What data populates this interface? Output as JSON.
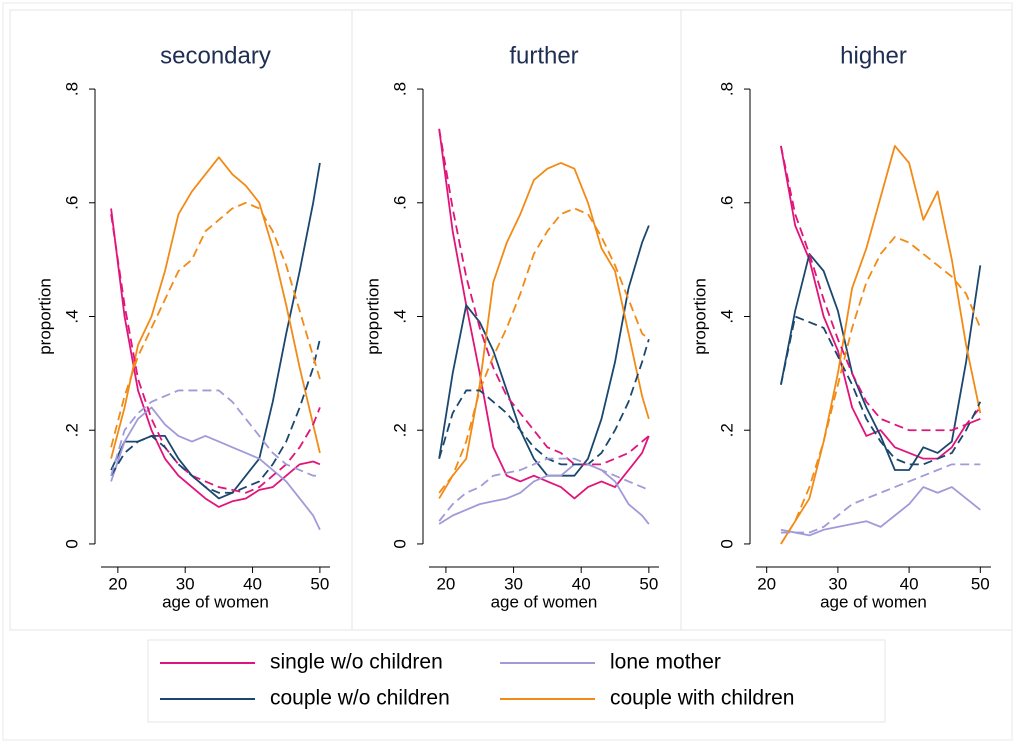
{
  "chart_data": [
    {
      "type": "line",
      "title": "secondary",
      "xlabel": "age of women",
      "ylabel": "proportion",
      "x": [
        19,
        21,
        23,
        25,
        27,
        29,
        31,
        33,
        35,
        37,
        39,
        41,
        43,
        45,
        47,
        49,
        50
      ],
      "xlim": [
        17.5,
        51.5
      ],
      "xticks": [
        20,
        30,
        40,
        50
      ],
      "ylim": [
        -0.03,
        0.83
      ],
      "yticks": [
        0,
        {
          "value": 0.2,
          "label": ".2"
        },
        {
          "value": 0.4,
          "label": ".4"
        },
        {
          "value": 0.6,
          "label": ".6"
        },
        {
          "value": 0.8,
          "label": ".8"
        }
      ],
      "legend": "bottom",
      "series": [
        {
          "name": "single w/o children",
          "color": "#e0147a",
          "values": [
            0.59,
            0.4,
            0.27,
            0.2,
            0.15,
            0.12,
            0.1,
            0.08,
            0.065,
            0.075,
            0.08,
            0.095,
            0.1,
            0.12,
            0.14,
            0.145,
            0.14
          ]
        },
        {
          "name": "couple w/o children",
          "color": "#1a476f",
          "values": [
            0.13,
            0.18,
            0.18,
            0.19,
            0.19,
            0.15,
            0.12,
            0.1,
            0.08,
            0.09,
            0.12,
            0.15,
            0.25,
            0.37,
            0.48,
            0.6,
            0.67
          ]
        },
        {
          "name": "lone mother",
          "color": "#a09ad8",
          "values": [
            0.11,
            0.18,
            0.22,
            0.24,
            0.21,
            0.19,
            0.18,
            0.19,
            0.18,
            0.17,
            0.16,
            0.15,
            0.13,
            0.11,
            0.08,
            0.05,
            0.025
          ]
        },
        {
          "name": "couple with children",
          "color": "#f28a15",
          "values": [
            0.15,
            0.24,
            0.35,
            0.4,
            0.48,
            0.58,
            0.62,
            0.65,
            0.68,
            0.65,
            0.63,
            0.6,
            0.52,
            0.42,
            0.31,
            0.21,
            0.16
          ]
        },
        {
          "color": "#e0147a",
          "linestyle": "dashed",
          "values": [
            0.58,
            0.42,
            0.29,
            0.22,
            0.17,
            0.14,
            0.12,
            0.11,
            0.1,
            0.095,
            0.09,
            0.1,
            0.12,
            0.14,
            0.17,
            0.21,
            0.24
          ]
        },
        {
          "color": "#1a476f",
          "linestyle": "dashed",
          "values": [
            0.12,
            0.16,
            0.18,
            0.19,
            0.17,
            0.14,
            0.12,
            0.1,
            0.09,
            0.09,
            0.1,
            0.11,
            0.14,
            0.18,
            0.24,
            0.31,
            0.36
          ]
        },
        {
          "color": "#a09ad8",
          "linestyle": "dashed",
          "values": [
            0.12,
            0.2,
            0.23,
            0.25,
            0.26,
            0.27,
            0.27,
            0.27,
            0.27,
            0.25,
            0.22,
            0.19,
            0.16,
            0.14,
            0.13,
            0.12,
            0.12
          ]
        },
        {
          "color": "#f28a15",
          "linestyle": "dashed",
          "values": [
            0.17,
            0.26,
            0.33,
            0.38,
            0.43,
            0.48,
            0.5,
            0.55,
            0.57,
            0.59,
            0.6,
            0.59,
            0.55,
            0.49,
            0.41,
            0.33,
            0.29
          ]
        }
      ]
    },
    {
      "type": "line",
      "title": "further",
      "xlabel": "age of women",
      "ylabel": "proportion",
      "x": [
        19,
        21,
        23,
        25,
        27,
        29,
        31,
        33,
        35,
        37,
        39,
        41,
        43,
        45,
        47,
        49,
        50
      ],
      "xlim": [
        17.5,
        51.5
      ],
      "xticks": [
        20,
        30,
        40,
        50
      ],
      "ylim": [
        -0.03,
        0.83
      ],
      "yticks": [
        0,
        {
          "value": 0.2,
          "label": ".2"
        },
        {
          "value": 0.4,
          "label": ".4"
        },
        {
          "value": 0.6,
          "label": ".6"
        },
        {
          "value": 0.8,
          "label": ".8"
        }
      ],
      "series": [
        {
          "color": "#e0147a",
          "values": [
            0.73,
            0.55,
            0.42,
            0.3,
            0.17,
            0.12,
            0.11,
            0.12,
            0.11,
            0.1,
            0.08,
            0.1,
            0.11,
            0.1,
            0.13,
            0.16,
            0.19
          ]
        },
        {
          "color": "#1a476f",
          "values": [
            0.15,
            0.3,
            0.42,
            0.39,
            0.34,
            0.27,
            0.2,
            0.15,
            0.12,
            0.12,
            0.12,
            0.15,
            0.22,
            0.32,
            0.45,
            0.53,
            0.56
          ]
        },
        {
          "color": "#a09ad8",
          "values": [
            0.035,
            0.05,
            0.06,
            0.07,
            0.075,
            0.08,
            0.09,
            0.11,
            0.12,
            0.12,
            0.14,
            0.14,
            0.13,
            0.11,
            0.07,
            0.05,
            0.035
          ]
        },
        {
          "color": "#f28a15",
          "values": [
            0.08,
            0.12,
            0.15,
            0.28,
            0.46,
            0.53,
            0.58,
            0.64,
            0.66,
            0.67,
            0.66,
            0.6,
            0.52,
            0.48,
            0.37,
            0.26,
            0.22
          ]
        },
        {
          "color": "#e0147a",
          "linestyle": "dashed",
          "values": [
            0.73,
            0.59,
            0.47,
            0.38,
            0.31,
            0.26,
            0.23,
            0.2,
            0.17,
            0.16,
            0.14,
            0.14,
            0.14,
            0.15,
            0.16,
            0.18,
            0.19
          ]
        },
        {
          "color": "#1a476f",
          "linestyle": "dashed",
          "values": [
            0.15,
            0.23,
            0.27,
            0.27,
            0.25,
            0.23,
            0.2,
            0.17,
            0.15,
            0.14,
            0.14,
            0.14,
            0.16,
            0.2,
            0.25,
            0.32,
            0.36
          ]
        },
        {
          "color": "#a09ad8",
          "linestyle": "dashed",
          "values": [
            0.04,
            0.07,
            0.09,
            0.1,
            0.12,
            0.125,
            0.13,
            0.14,
            0.15,
            0.15,
            0.15,
            0.14,
            0.13,
            0.12,
            0.11,
            0.1,
            0.095
          ]
        },
        {
          "color": "#f28a15",
          "linestyle": "dashed",
          "values": [
            0.09,
            0.12,
            0.18,
            0.27,
            0.33,
            0.38,
            0.44,
            0.51,
            0.55,
            0.58,
            0.59,
            0.58,
            0.54,
            0.49,
            0.43,
            0.37,
            0.36
          ]
        }
      ]
    },
    {
      "type": "line",
      "title": "higher",
      "xlabel": "age of women",
      "ylabel": "proportion",
      "x": [
        22,
        24,
        26,
        28,
        30,
        32,
        34,
        36,
        38,
        40,
        42,
        44,
        46,
        48,
        50
      ],
      "xlim": [
        18.5,
        51.5
      ],
      "xticks": [
        20,
        30,
        40,
        50
      ],
      "ylim": [
        -0.03,
        0.83
      ],
      "yticks": [
        0,
        {
          "value": 0.2,
          "label": ".2"
        },
        {
          "value": 0.4,
          "label": ".4"
        },
        {
          "value": 0.6,
          "label": ".6"
        },
        {
          "value": 0.8,
          "label": ".8"
        }
      ],
      "series": [
        {
          "color": "#e0147a",
          "values": [
            0.7,
            0.56,
            0.5,
            0.4,
            0.34,
            0.24,
            0.19,
            0.2,
            0.17,
            0.16,
            0.15,
            0.15,
            0.17,
            0.21,
            0.22
          ]
        },
        {
          "color": "#1a476f",
          "values": [
            0.28,
            0.41,
            0.51,
            0.48,
            0.41,
            0.3,
            0.24,
            0.19,
            0.13,
            0.13,
            0.17,
            0.16,
            0.18,
            0.32,
            0.49
          ]
        },
        {
          "color": "#a09ad8",
          "values": [
            0.025,
            0.02,
            0.015,
            0.025,
            0.03,
            0.035,
            0.04,
            0.03,
            0.05,
            0.07,
            0.1,
            0.09,
            0.1,
            0.08,
            0.06
          ]
        },
        {
          "color": "#f28a15",
          "values": [
            0.0,
            0.04,
            0.08,
            0.18,
            0.3,
            0.45,
            0.52,
            0.61,
            0.7,
            0.67,
            0.57,
            0.62,
            0.5,
            0.35,
            0.23
          ]
        },
        {
          "color": "#e0147a",
          "linestyle": "dashed",
          "values": [
            0.7,
            0.58,
            0.51,
            0.43,
            0.36,
            0.3,
            0.25,
            0.22,
            0.21,
            0.2,
            0.2,
            0.2,
            0.2,
            0.21,
            0.24
          ]
        },
        {
          "color": "#1a476f",
          "linestyle": "dashed",
          "values": [
            0.28,
            0.4,
            0.39,
            0.38,
            0.33,
            0.28,
            0.22,
            0.18,
            0.15,
            0.14,
            0.14,
            0.15,
            0.16,
            0.2,
            0.25
          ]
        },
        {
          "color": "#a09ad8",
          "linestyle": "dashed",
          "values": [
            0.02,
            0.02,
            0.02,
            0.03,
            0.05,
            0.07,
            0.08,
            0.09,
            0.1,
            0.11,
            0.12,
            0.13,
            0.14,
            0.14,
            0.14
          ]
        },
        {
          "color": "#f28a15",
          "linestyle": "dashed",
          "values": [
            0.0,
            0.04,
            0.1,
            0.18,
            0.28,
            0.38,
            0.46,
            0.51,
            0.54,
            0.53,
            0.51,
            0.49,
            0.47,
            0.44,
            0.38
          ]
        }
      ]
    }
  ]
}
